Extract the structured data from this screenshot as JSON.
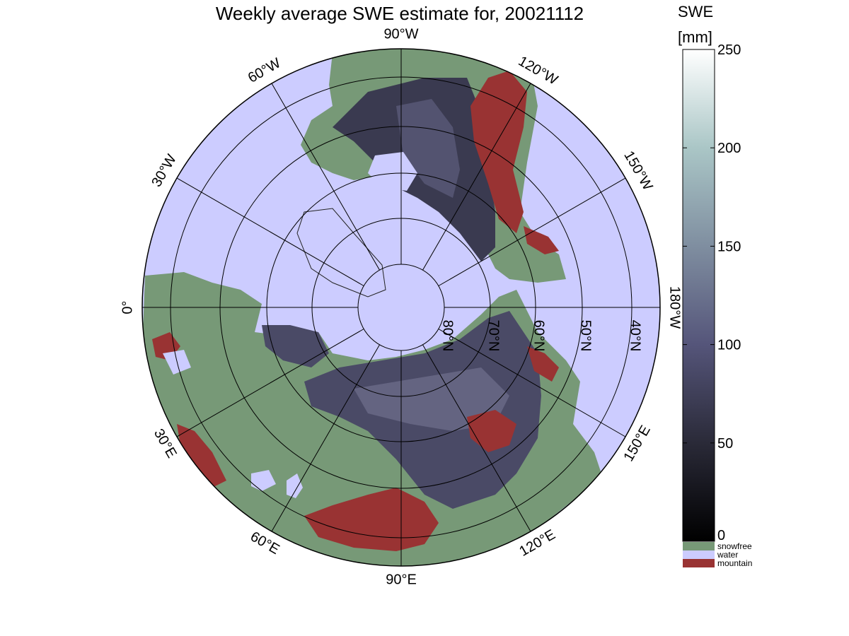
{
  "title": "Weekly average SWE estimate for, 20021112",
  "colorbar": {
    "label_line1": "SWE",
    "label_line2": "[mm]",
    "ticks": [
      "0",
      "50",
      "100",
      "150",
      "200",
      "250"
    ],
    "range": [
      0,
      250
    ],
    "categories": [
      {
        "label": "snowfree",
        "color": "#779977"
      },
      {
        "label": "water",
        "color": "#ccccff"
      },
      {
        "label": "mountain",
        "color": "#993333"
      }
    ]
  },
  "map": {
    "projection": "north-polar-stereographic",
    "longitude_labels": [
      {
        "lon": 90,
        "text": "90°W"
      },
      {
        "lon": 120,
        "text": "120°W"
      },
      {
        "lon": 150,
        "text": "150°W"
      },
      {
        "lon": 180,
        "text": "180°W"
      },
      {
        "lon": 210,
        "text": "150°E"
      },
      {
        "lon": 240,
        "text": "120°E"
      },
      {
        "lon": 270,
        "text": "90°E"
      },
      {
        "lon": 300,
        "text": "60°E"
      },
      {
        "lon": 330,
        "text": "30°E"
      },
      {
        "lon": 0,
        "text": "0°"
      },
      {
        "lon": 30,
        "text": "30°W"
      },
      {
        "lon": 60,
        "text": "60°W"
      }
    ],
    "latitude_labels": [
      "80°N",
      "70°N",
      "60°N",
      "50°N",
      "40°N"
    ],
    "colors": {
      "ocean": "#ccccff",
      "snowfree": "#779977",
      "mountain": "#993333",
      "snow_low": "#141418",
      "snow_mid": "#4a4a66",
      "snow_high": "#6a6a88",
      "frame": "#000000"
    }
  }
}
